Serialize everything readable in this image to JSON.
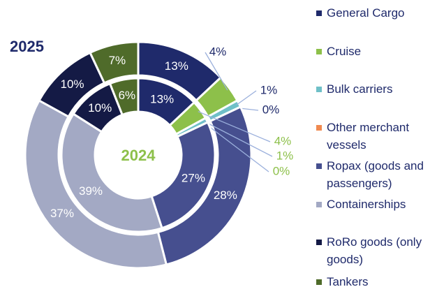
{
  "chart_data": {
    "type": "donut",
    "categories": [
      "General Cargo",
      "Cruise",
      "Bulk carriers",
      "Other merchant vessels",
      "Ropax (goods and passengers)",
      "Containerships",
      "RoRo goods (only goods)",
      "Tankers"
    ],
    "colors": [
      "#1f2a6b",
      "#8dc04a",
      "#6fc0c8",
      "#f08a50",
      "#464f8f",
      "#a3a9c4",
      "#141a45",
      "#4f6b2a"
    ],
    "series": [
      {
        "name": "2025",
        "values": [
          13,
          4,
          1,
          0,
          28,
          37,
          10,
          7
        ],
        "value_labels": [
          "13%",
          "4%",
          "1%",
          "0%",
          "28%",
          "37%",
          "10%",
          "7%"
        ]
      },
      {
        "name": "2024",
        "values": [
          13,
          4,
          1,
          0,
          27,
          39,
          10,
          6
        ],
        "value_labels": [
          "13%",
          "4%",
          "1%",
          "0%",
          "27%",
          "39%",
          "10%",
          "6%"
        ]
      }
    ]
  }
}
